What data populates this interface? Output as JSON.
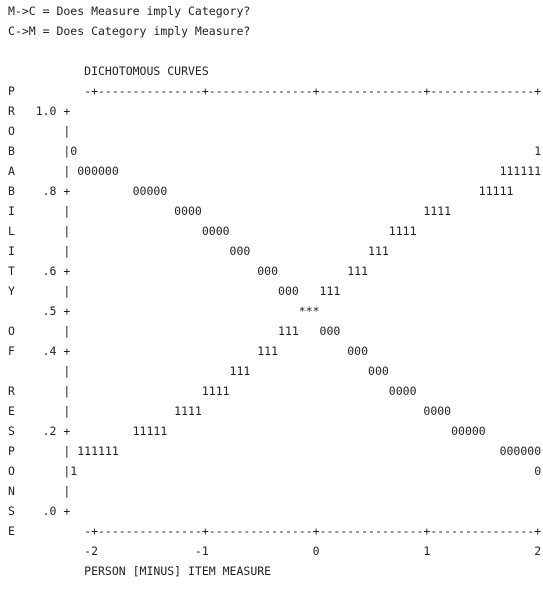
{
  "lines": [
    "M->C = Does Measure imply Category?",
    "C->M = Does Category imply Measure?",
    "           DICHOTOMOUS CURVES",
    "P          -+---------------+---------------+---------------+---------------+",
    "R   1.0 +",
    "O       |",
    "B       |0                                                                  1",
    "A       | 000000                                                       111111",
    "B    .8 +         00000                                             11111",
    "I       |               0000                                1111",
    "L       |                   0000                       1111",
    "I       |                       000                 111",
    "T    .6 +                           000          111",
    "Y       |                              000   111",
    "     .5 +                                 ***",
    "O       |                              111   000",
    "F    .4 +                           111          000",
    "        |                       111                 000",
    "R       |                   1111                       0000",
    "E       |               1111                                0000",
    "S    .2 +         11111                                         00000",
    "P       | 111111                                                       000000",
    "O       |1                                                                  0",
    "N       |",
    "S    .0 +",
    "E          -+---------------+---------------+---------------+---------------+",
    "           -2              -1               0               1               2",
    "           PERSON [MINUS] ITEM MEASURE"
  ]
}
